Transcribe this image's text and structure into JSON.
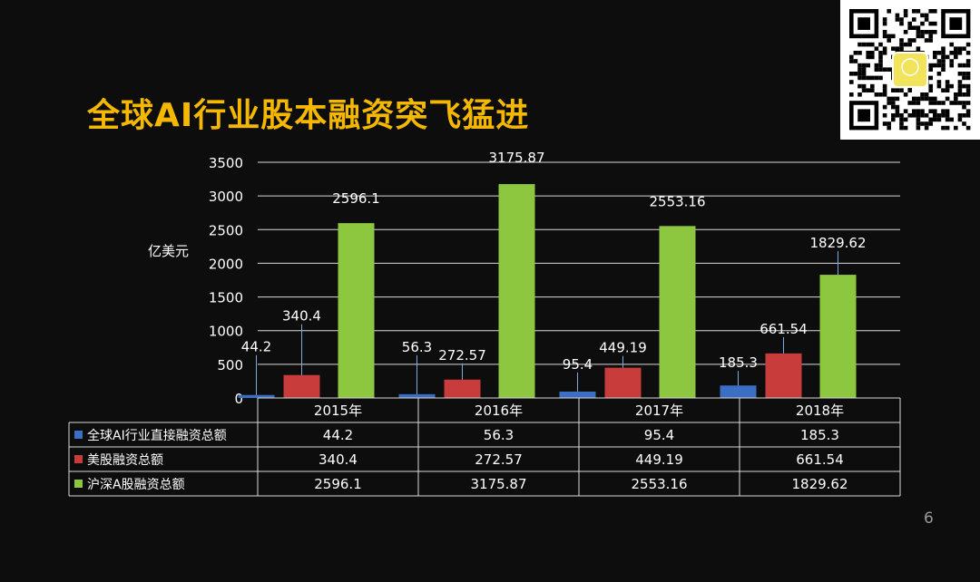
{
  "slide": {
    "title": "全球AI行业股本融资突飞猛进",
    "page_number": "6"
  },
  "colors": {
    "background": "#0d0d0d",
    "title": "#f5b800",
    "text": "#ffffff",
    "series": [
      "#3a6fc4",
      "#c83c3c",
      "#8dc63f"
    ]
  },
  "icons": {
    "qr": "qr-code-icon"
  },
  "chart_data": {
    "type": "bar",
    "ylabel": "亿美元",
    "ylim": [
      0,
      3500
    ],
    "yticks": [
      0,
      500,
      1000,
      1500,
      2000,
      2500,
      3000,
      3500
    ],
    "grid": true,
    "legend": "data-table-left",
    "categories": [
      "2015年",
      "2016年",
      "2017年",
      "2018年"
    ],
    "series": [
      {
        "name": "全球AI行业直接融资总额",
        "values": [
          44.2,
          56.3,
          95.4,
          185.3
        ],
        "labels": [
          "44.2",
          "56.3",
          "95.4",
          "185.3"
        ]
      },
      {
        "name": "美股融资总额",
        "values": [
          340.4,
          272.57,
          449.19,
          661.54
        ],
        "labels": [
          "340.4",
          "272.57",
          "449.19",
          "661.54"
        ]
      },
      {
        "name": "沪深A股融资总额",
        "values": [
          2596.1,
          3175.87,
          2553.16,
          1829.62
        ],
        "labels": [
          "2596.1",
          "3175.87",
          "2553.16",
          "1829.62"
        ]
      }
    ]
  }
}
